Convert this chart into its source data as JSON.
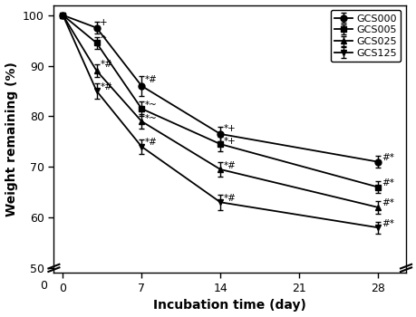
{
  "x": [
    0,
    3,
    7,
    14,
    28
  ],
  "GCS000": [
    100,
    97.5,
    86.0,
    76.5,
    71.0
  ],
  "GCS005": [
    100,
    94.5,
    81.5,
    74.5,
    66.0
  ],
  "GCS025": [
    100,
    89.0,
    79.0,
    69.5,
    62.0
  ],
  "GCS125": [
    100,
    85.0,
    74.0,
    63.0,
    58.0
  ],
  "GCS000_err": [
    0.3,
    1.2,
    2.0,
    1.5,
    1.2
  ],
  "GCS005_err": [
    0.3,
    1.2,
    1.5,
    1.5,
    1.2
  ],
  "GCS025_err": [
    0.3,
    1.2,
    1.5,
    1.5,
    1.2
  ],
  "GCS125_err": [
    0.3,
    1.5,
    1.5,
    1.5,
    1.2
  ],
  "xlabel": "Incubation time (day)",
  "ylabel": "Weight remaining (%)",
  "ylim_bottom": 49,
  "ylim_top": 102,
  "xlim_left": -0.8,
  "xlim_right": 30.5,
  "xticks": [
    0,
    7,
    14,
    21,
    28
  ],
  "yticks": [
    50,
    60,
    70,
    80,
    90,
    100
  ],
  "line_color": "black",
  "marker_size": 5,
  "linewidth": 1.3,
  "capsize": 2.5,
  "elinewidth": 1.0,
  "legend_fontsize": 8,
  "axis_fontsize": 10,
  "tick_fontsize": 9,
  "annot_fontsize": 7.5
}
